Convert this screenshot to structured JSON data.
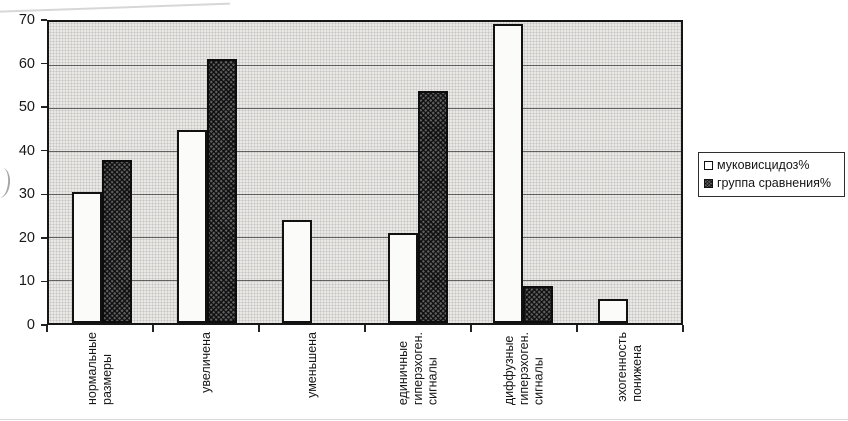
{
  "chart_data": {
    "type": "bar",
    "title": "",
    "categories": [
      "нормальные\nразмеры",
      "увеличена",
      "уменьшена",
      "единичные\nгиперэхоген.\nсигналы",
      "диффузные\nгиперэхоген.\nсигналы",
      "эхогенность\nпонижена"
    ],
    "series": [
      {
        "name": "муковисцидоз%",
        "swatch": "white",
        "values": [
          30.5,
          45,
          24,
          21,
          69.5,
          5.5
        ]
      },
      {
        "name": "группа сравнения%",
        "swatch": "dark-crosshatch",
        "values": [
          38,
          61.5,
          null,
          54,
          8.5,
          null
        ]
      }
    ],
    "xlabel": "",
    "ylabel": "",
    "ylim": [
      0,
      70
    ],
    "yticks": [
      0,
      10,
      20,
      30,
      40,
      50,
      60,
      70
    ],
    "grid": true,
    "legend_position": "right-middle"
  },
  "colors": {
    "page_background": "#ffffff",
    "plot_background": "#e9e8e5",
    "halftone_dot": "#c6c5c2",
    "gridline": "#4a4a4a",
    "axis_border": "#161616",
    "bar_white_fill": "#fbfbfa",
    "bar_dark_fill": "#5f5f5f",
    "text": "#1c1c1c"
  }
}
